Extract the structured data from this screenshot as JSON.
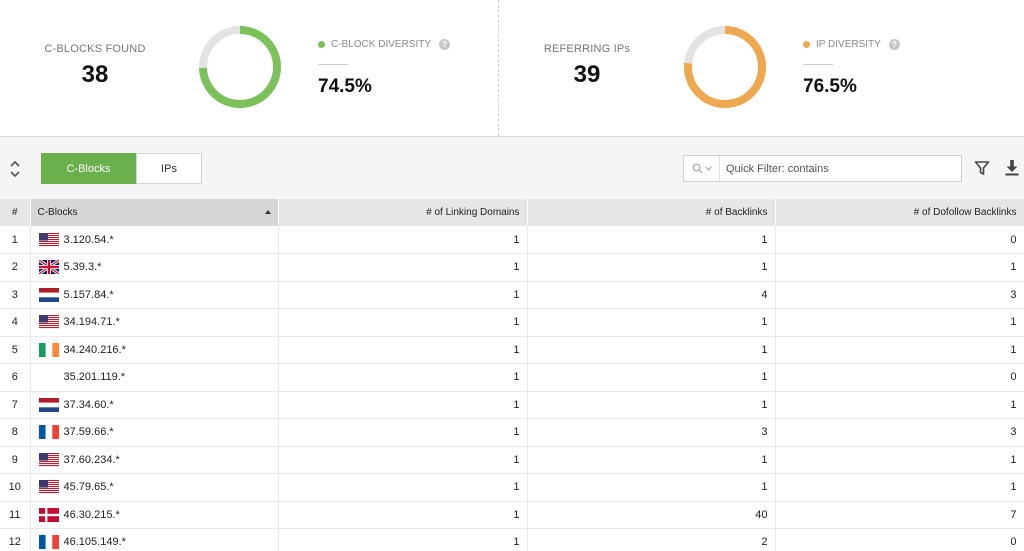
{
  "summary": {
    "cblocks": {
      "label": "C-BLOCKS FOUND",
      "value": "38",
      "diversity_label": "C-BLOCK DIVERSITY",
      "diversity_value": "74.5%",
      "diversity_fraction": 0.745,
      "color": "#7cc05a"
    },
    "ips": {
      "label": "REFERRING IPs",
      "value": "39",
      "diversity_label": "IP DIVERSITY",
      "diversity_value": "76.5%",
      "diversity_fraction": 0.765,
      "color": "#f0a850"
    },
    "help_glyph": "?"
  },
  "toolbar": {
    "tabs": [
      {
        "label": "C-Blocks",
        "active": true
      },
      {
        "label": "IPs",
        "active": false
      }
    ],
    "filter_placeholder": "Quick Filter: contains"
  },
  "table": {
    "columns": [
      "#",
      "C-Blocks",
      "# of Linking Domains",
      "# of Backlinks",
      "# of Dofollow Backlinks"
    ],
    "rows": [
      {
        "idx": "1",
        "flag": "us",
        "block": "3.120.54.*",
        "domains": "1",
        "backlinks": "1",
        "dofollow": "0"
      },
      {
        "idx": "2",
        "flag": "gb",
        "block": "5.39.3.*",
        "domains": "1",
        "backlinks": "1",
        "dofollow": "1"
      },
      {
        "idx": "3",
        "flag": "nl",
        "block": "5.157.84.*",
        "domains": "1",
        "backlinks": "4",
        "dofollow": "3"
      },
      {
        "idx": "4",
        "flag": "us",
        "block": "34.194.71.*",
        "domains": "1",
        "backlinks": "1",
        "dofollow": "1"
      },
      {
        "idx": "5",
        "flag": "ie",
        "block": "34.240.216.*",
        "domains": "1",
        "backlinks": "1",
        "dofollow": "1"
      },
      {
        "idx": "6",
        "flag": "",
        "block": "35.201.119.*",
        "domains": "1",
        "backlinks": "1",
        "dofollow": "0"
      },
      {
        "idx": "7",
        "flag": "nl",
        "block": "37.34.60.*",
        "domains": "1",
        "backlinks": "1",
        "dofollow": "1"
      },
      {
        "idx": "8",
        "flag": "fr",
        "block": "37.59.66.*",
        "domains": "1",
        "backlinks": "3",
        "dofollow": "3"
      },
      {
        "idx": "9",
        "flag": "us",
        "block": "37.60.234.*",
        "domains": "1",
        "backlinks": "1",
        "dofollow": "1"
      },
      {
        "idx": "10",
        "flag": "us",
        "block": "45.79.65.*",
        "domains": "1",
        "backlinks": "1",
        "dofollow": "1"
      },
      {
        "idx": "11",
        "flag": "dk",
        "block": "46.30.215.*",
        "domains": "1",
        "backlinks": "40",
        "dofollow": "7"
      },
      {
        "idx": "12",
        "flag": "fr",
        "block": "46.105.149.*",
        "domains": "1",
        "backlinks": "2",
        "dofollow": "0"
      }
    ]
  }
}
